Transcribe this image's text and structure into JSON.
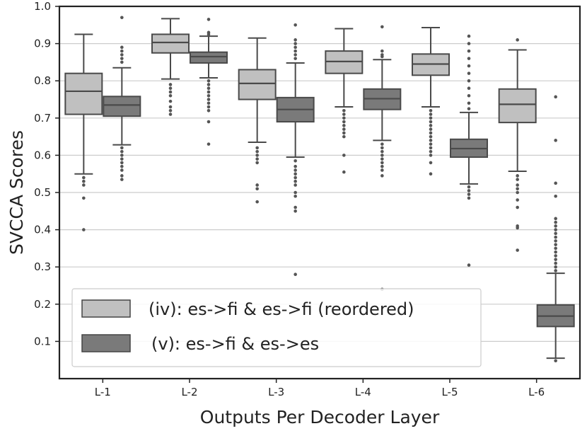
{
  "chart_data": {
    "type": "box",
    "xlabel": "Outputs Per Decoder Layer",
    "ylabel": "SVCCA Scores",
    "ylim": [
      0.0,
      1.0
    ],
    "yticks": [
      0.1,
      0.2,
      0.3,
      0.4,
      0.5,
      0.6,
      0.7,
      0.8,
      0.9,
      1.0
    ],
    "grid": "horizontal",
    "legend_position": "lower-left",
    "categories": [
      "L-1",
      "L-2",
      "L-3",
      "L-4",
      "L-5",
      "L-6"
    ],
    "series": [
      {
        "name": "(iv): es->fi & es->fi (reordered)",
        "color": "#c0c0c0",
        "boxes": [
          {
            "whisker_low": 0.55,
            "q1": 0.71,
            "median": 0.772,
            "q3": 0.82,
            "whisker_high": 0.925,
            "outliers": [
              0.54,
              0.53,
              0.52,
              0.485,
              0.4
            ]
          },
          {
            "whisker_low": 0.805,
            "q1": 0.875,
            "median": 0.903,
            "q3": 0.925,
            "whisker_high": 0.967,
            "outliers": [
              0.79,
              0.78,
              0.77,
              0.76,
              0.745,
              0.73,
              0.72,
              0.71
            ]
          },
          {
            "whisker_low": 0.635,
            "q1": 0.75,
            "median": 0.793,
            "q3": 0.83,
            "whisker_high": 0.915,
            "outliers": [
              0.62,
              0.61,
              0.6,
              0.59,
              0.58,
              0.52,
              0.51,
              0.475
            ]
          },
          {
            "whisker_low": 0.73,
            "q1": 0.82,
            "median": 0.852,
            "q3": 0.88,
            "whisker_high": 0.94,
            "outliers": [
              0.72,
              0.71,
              0.7,
              0.69,
              0.68,
              0.67,
              0.66,
              0.65,
              0.6,
              0.555
            ]
          },
          {
            "whisker_low": 0.73,
            "q1": 0.815,
            "median": 0.845,
            "q3": 0.872,
            "whisker_high": 0.943,
            "outliers": [
              0.72,
              0.71,
              0.7,
              0.69,
              0.68,
              0.67,
              0.66,
              0.65,
              0.64,
              0.63,
              0.62,
              0.61,
              0.6,
              0.58,
              0.55
            ]
          },
          {
            "whisker_low": 0.557,
            "q1": 0.688,
            "median": 0.737,
            "q3": 0.778,
            "whisker_high": 0.883,
            "outliers": [
              0.91,
              0.545,
              0.535,
              0.52,
              0.51,
              0.5,
              0.48,
              0.46,
              0.41,
              0.405,
              0.345
            ]
          }
        ]
      },
      {
        "name": "(v): es->fi & es->es",
        "color": "#7a7a7a",
        "boxes": [
          {
            "whisker_low": 0.628,
            "q1": 0.705,
            "median": 0.735,
            "q3": 0.758,
            "whisker_high": 0.835,
            "outliers": [
              0.97,
              0.89,
              0.88,
              0.87,
              0.86,
              0.85,
              0.62,
              0.61,
              0.6,
              0.59,
              0.58,
              0.57,
              0.56,
              0.545,
              0.535
            ]
          },
          {
            "whisker_low": 0.808,
            "q1": 0.848,
            "median": 0.865,
            "q3": 0.877,
            "whisker_high": 0.92,
            "outliers": [
              0.965,
              0.93,
              0.925,
              0.8,
              0.79,
              0.78,
              0.77,
              0.76,
              0.75,
              0.74,
              0.73,
              0.72,
              0.69,
              0.63
            ]
          },
          {
            "whisker_low": 0.595,
            "q1": 0.69,
            "median": 0.723,
            "q3": 0.755,
            "whisker_high": 0.848,
            "outliers": [
              0.95,
              0.91,
              0.9,
              0.89,
              0.88,
              0.87,
              0.86,
              0.585,
              0.57,
              0.56,
              0.55,
              0.54,
              0.53,
              0.52,
              0.5,
              0.49,
              0.46,
              0.45,
              0.28
            ]
          },
          {
            "whisker_low": 0.64,
            "q1": 0.723,
            "median": 0.752,
            "q3": 0.778,
            "whisker_high": 0.857,
            "outliers": [
              0.945,
              0.88,
              0.87,
              0.865,
              0.63,
              0.62,
              0.61,
              0.6,
              0.59,
              0.58,
              0.57,
              0.56,
              0.545,
              0.24
            ]
          },
          {
            "whisker_low": 0.523,
            "q1": 0.595,
            "median": 0.618,
            "q3": 0.643,
            "whisker_high": 0.715,
            "outliers": [
              0.92,
              0.9,
              0.88,
              0.86,
              0.84,
              0.82,
              0.8,
              0.78,
              0.76,
              0.74,
              0.725,
              0.515,
              0.505,
              0.495,
              0.485,
              0.305
            ]
          },
          {
            "whisker_low": 0.055,
            "q1": 0.14,
            "median": 0.168,
            "q3": 0.198,
            "whisker_high": 0.283,
            "outliers": [
              0.757,
              0.64,
              0.525,
              0.49,
              0.43,
              0.42,
              0.41,
              0.4,
              0.39,
              0.38,
              0.37,
              0.36,
              0.35,
              0.34,
              0.33,
              0.32,
              0.31,
              0.3,
              0.29,
              0.048
            ]
          }
        ]
      }
    ]
  }
}
